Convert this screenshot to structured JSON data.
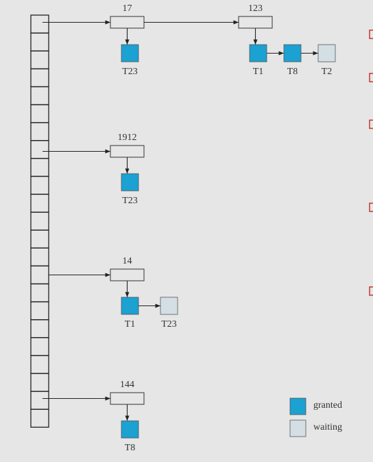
{
  "items": [
    {
      "label": "17",
      "requests": [
        {
          "label": "T23",
          "color": "#1ba1d2"
        }
      ]
    },
    {
      "label": "123",
      "requests": [
        {
          "label": "T1",
          "color": "#1ba1d2"
        },
        {
          "label": "T8",
          "color": "#1ba1d2"
        },
        {
          "label": "T2",
          "color": "#d3dfe5"
        }
      ]
    },
    {
      "label": "1912",
      "requests": [
        {
          "label": "T23",
          "color": "#1ba1d2"
        }
      ]
    },
    {
      "label": "14",
      "requests": [
        {
          "label": "T1",
          "color": "#1ba1d2"
        },
        {
          "label": "T23",
          "color": "#d3dfe5"
        }
      ]
    },
    {
      "label": "144",
      "requests": [
        {
          "label": "T8",
          "color": "#1ba1d2"
        }
      ]
    }
  ],
  "legend": [
    {
      "label": "granted",
      "color": "#1ba1d2"
    },
    {
      "label": "waiting",
      "color": "#d3dfe5"
    }
  ]
}
